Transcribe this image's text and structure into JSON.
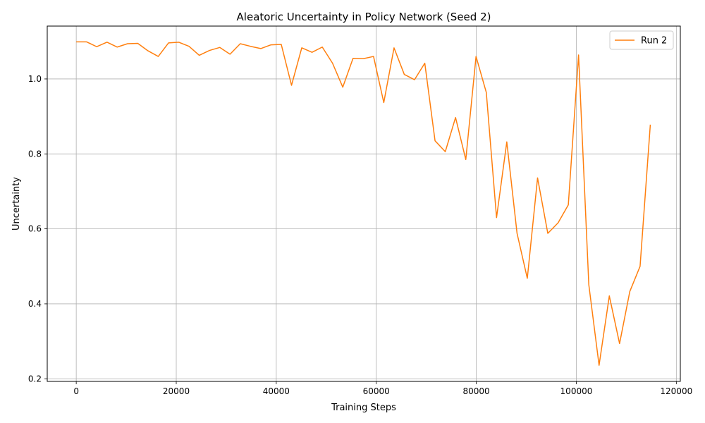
{
  "chart_data": {
    "type": "line",
    "title": "Aleatoric Uncertainty in Policy Network (Seed 2)",
    "xlabel": "Training Steps",
    "ylabel": "Uncertainty",
    "xlim": [
      -5800,
      120800
    ],
    "ylim": [
      0.193,
      1.141
    ],
    "xticks": [
      0,
      20000,
      40000,
      60000,
      80000,
      100000,
      120000
    ],
    "yticks": [
      0.2,
      0.4,
      0.6,
      0.8,
      1.0
    ],
    "xtick_labels": [
      "0",
      "20000",
      "40000",
      "60000",
      "80000",
      "100000",
      "120000"
    ],
    "ytick_labels": [
      "0.2",
      "0.4",
      "0.6",
      "0.8",
      "1.0"
    ],
    "grid": true,
    "legend_position": "top-right",
    "series": [
      {
        "name": "Run 2",
        "color": "#ff7f0e",
        "x": [
          0,
          2050,
          4100,
          6150,
          8200,
          10250,
          12300,
          14350,
          16400,
          18450,
          20500,
          22550,
          24600,
          26650,
          28700,
          30750,
          32800,
          34850,
          36900,
          38950,
          41000,
          43050,
          45100,
          47150,
          49200,
          51250,
          53300,
          55350,
          57400,
          59450,
          61500,
          63550,
          65600,
          67650,
          69700,
          71750,
          73800,
          75850,
          77900,
          79950,
          82000,
          84050,
          86100,
          88150,
          90200,
          92250,
          94300,
          96350,
          98400,
          100450,
          102500,
          104550,
          106600,
          108650,
          110700,
          112750,
          114800
        ],
        "y": [
          1.099,
          1.099,
          1.086,
          1.098,
          1.085,
          1.094,
          1.095,
          1.075,
          1.06,
          1.096,
          1.098,
          1.087,
          1.063,
          1.076,
          1.084,
          1.066,
          1.094,
          1.087,
          1.081,
          1.091,
          1.092,
          0.983,
          1.083,
          1.071,
          1.085,
          1.042,
          0.978,
          1.055,
          1.054,
          1.06,
          0.937,
          1.083,
          1.012,
          0.998,
          1.042,
          0.835,
          0.806,
          0.897,
          0.785,
          1.06,
          0.964,
          0.63,
          0.832,
          0.588,
          0.468,
          0.736,
          0.588,
          0.616,
          0.664,
          1.064,
          0.451,
          0.236,
          0.421,
          0.294,
          0.433,
          0.5,
          0.878
        ]
      }
    ]
  }
}
